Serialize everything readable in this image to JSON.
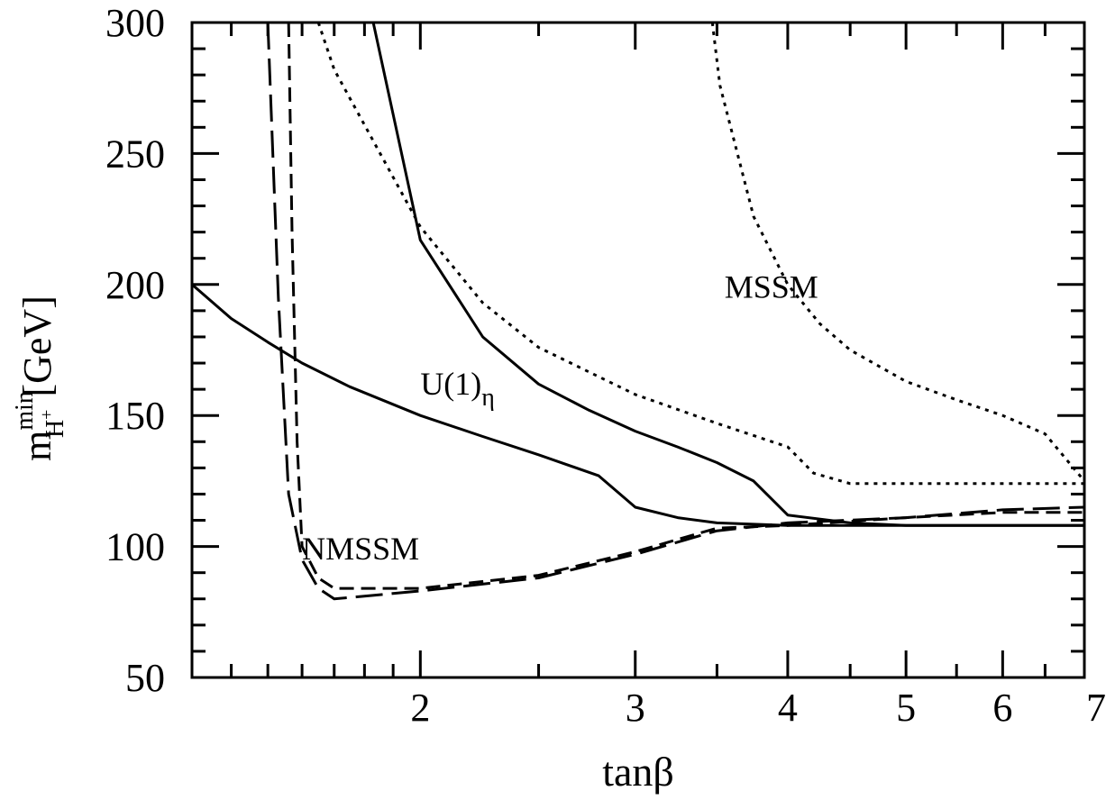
{
  "chart_data": {
    "type": "line",
    "xlabel": "tanβ",
    "ylabel": {
      "main": "m",
      "sup": "min",
      "sub": "H",
      "subsup": "+",
      "unit": "[GeV]"
    },
    "xscale": "log",
    "xlim": [
      1.3,
      7
    ],
    "ylim": [
      50,
      300
    ],
    "x_ticks": [
      2,
      3,
      4,
      5,
      6,
      7
    ],
    "y_ticks": [
      50,
      100,
      150,
      200,
      250,
      300
    ],
    "grid": false,
    "annotations": [
      {
        "id": "mssm",
        "text": "MSSM",
        "x": 3.55,
        "y": 195
      },
      {
        "id": "u1",
        "text": "U(1)",
        "sub": "η",
        "x": 2.0,
        "y": 158
      },
      {
        "id": "nmssm",
        "text": "NMSSM",
        "x": 1.6,
        "y": 95
      }
    ],
    "series": [
      {
        "id": "mssm-lower-dotted",
        "style": "dotted",
        "x": [
          1.65,
          1.7,
          2.0,
          2.25,
          2.5,
          3.0,
          3.5,
          4.0,
          4.2,
          4.5,
          5.0,
          6.0,
          7.0
        ],
        "y": [
          300,
          282,
          222,
          193,
          176,
          158,
          147,
          138,
          128,
          124,
          124,
          124,
          124
        ]
      },
      {
        "id": "mssm-upper-dotted",
        "style": "dotted",
        "x": [
          3.47,
          3.52,
          3.75,
          4.0,
          4.25,
          4.5,
          5.0,
          5.5,
          6.0,
          6.5,
          7.0
        ],
        "y": [
          300,
          276,
          226,
          200,
          185,
          175,
          163,
          156,
          150,
          143,
          125
        ]
      },
      {
        "id": "upper-solid",
        "style": "solid",
        "x": [
          1.83,
          2.0,
          2.25,
          2.5,
          2.75,
          3.0,
          3.25,
          3.5,
          3.75,
          4.0,
          4.5,
          5.0,
          7.0
        ],
        "y": [
          300,
          217,
          180,
          162,
          152,
          144,
          138,
          132,
          125,
          112,
          109,
          108,
          108
        ]
      },
      {
        "id": "u1-eta-solid",
        "style": "solid",
        "x": [
          1.3,
          1.4,
          1.5,
          1.6,
          1.75,
          2.0,
          2.25,
          2.5,
          2.8,
          3.0,
          3.25,
          3.5,
          4.0,
          5.0,
          7.0
        ],
        "y": [
          200,
          187,
          178,
          170,
          161,
          150,
          142,
          135,
          127,
          115,
          111,
          109,
          108,
          108,
          108
        ]
      },
      {
        "id": "nmssm-dash-long",
        "style": "longdash",
        "x": [
          1.5,
          1.53,
          1.56,
          1.6,
          1.65,
          1.7,
          2.0,
          2.5,
          3.0,
          3.5,
          4.0,
          5.0,
          6.0,
          7.0
        ],
        "y": [
          300,
          195,
          120,
          95,
          84,
          80,
          83,
          88,
          97,
          106,
          109,
          111,
          114,
          115
        ]
      },
      {
        "id": "nmssm-dash-short",
        "style": "shortdash",
        "x": [
          1.56,
          1.57,
          1.585,
          1.6,
          1.65,
          1.7,
          2.0,
          2.5,
          3.0,
          3.5,
          4.0,
          5.0,
          6.0,
          7.0
        ],
        "y": [
          300,
          220,
          140,
          100,
          88,
          84,
          84,
          89,
          98,
          107,
          108,
          111,
          113,
          113
        ]
      }
    ]
  }
}
